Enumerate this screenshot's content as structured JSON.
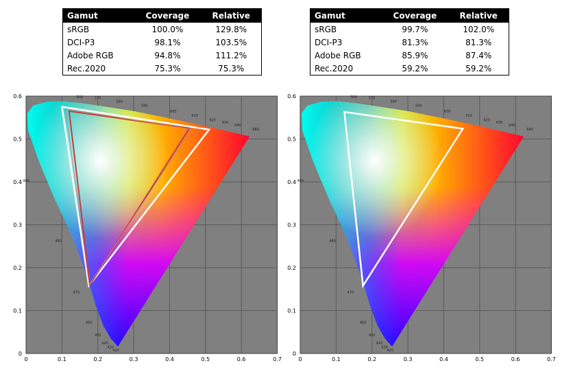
{
  "panels": [
    {
      "table": {
        "header": [
          "Gamut",
          "Coverage",
          "Relative"
        ],
        "rows": [
          [
            "sRGB",
            "100.0%",
            "129.8%"
          ],
          [
            "DCI-P3",
            "98.1%",
            "103.5%"
          ],
          [
            "Adobe RGB",
            "94.8%",
            "111.2%"
          ],
          [
            "Rec.2020",
            "75.3%",
            "75.3%"
          ]
        ]
      },
      "diagram": {
        "xticks": [
          "0",
          "0.1",
          "0.2",
          "0.3",
          "0.4",
          "0.5",
          "0.6",
          "0.7"
        ],
        "yticks": [
          "0",
          "0.1",
          "0.2",
          "0.3",
          "0.4",
          "0.5",
          "0.6"
        ],
        "wavelengths": [
          "420",
          "430",
          "440",
          "450",
          "460",
          "470",
          "480",
          "490",
          "500",
          "570",
          "580",
          "590",
          "600",
          "610",
          "620",
          "630",
          "640",
          "680"
        ]
      }
    },
    {
      "table": {
        "header": [
          "Gamut",
          "Coverage",
          "Relative"
        ],
        "rows": [
          [
            "sRGB",
            "99.7%",
            "102.0%"
          ],
          [
            "DCI-P3",
            "81.3%",
            "81.3%"
          ],
          [
            "Adobe RGB",
            "85.9%",
            "87.4%"
          ],
          [
            "Rec.2020",
            "59.2%",
            "59.2%"
          ]
        ]
      },
      "diagram": {
        "xticks": [
          "0",
          "0.1",
          "0.2",
          "0.3",
          "0.4",
          "0.5",
          "0.6",
          "0.7"
        ],
        "yticks": [
          "0",
          "0.1",
          "0.2",
          "0.3",
          "0.4",
          "0.5",
          "0.6"
        ],
        "wavelengths": [
          "420",
          "430",
          "440",
          "450",
          "460",
          "470",
          "480",
          "490",
          "500",
          "570",
          "580",
          "590",
          "600",
          "610",
          "620",
          "630",
          "640",
          "680"
        ]
      }
    }
  ]
}
